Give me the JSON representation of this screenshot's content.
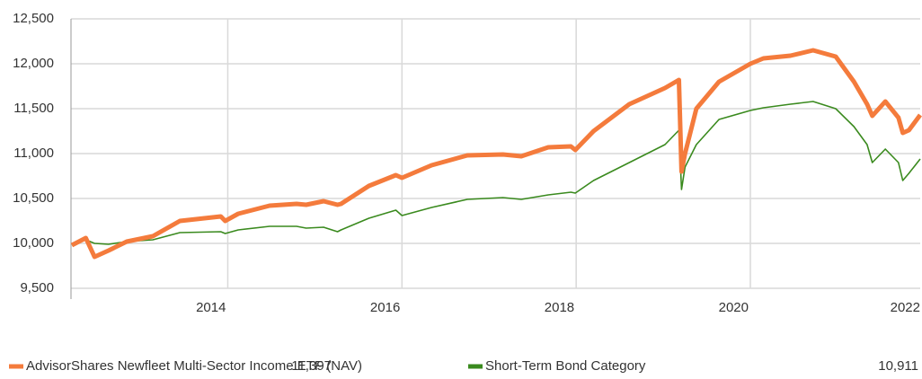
{
  "chart_data": {
    "type": "line",
    "x": [
      2012.21,
      2012.37,
      2012.47,
      2012.63,
      2012.84,
      2013.14,
      2013.45,
      2013.92,
      2013.97,
      2014.12,
      2014.48,
      2014.79,
      2014.9,
      2015.1,
      2015.26,
      2015.3,
      2015.62,
      2015.93,
      2016.0,
      2016.34,
      2016.75,
      2017.16,
      2017.37,
      2017.68,
      2017.94,
      2017.99,
      2018.2,
      2018.61,
      2019.02,
      2019.18,
      2019.21,
      2019.25,
      2019.38,
      2019.64,
      2020.0,
      2020.15,
      2020.46,
      2020.72,
      2020.98,
      2021.19,
      2021.34,
      2021.4,
      2021.55,
      2021.7,
      2021.75,
      2021.82,
      2021.95
    ],
    "series": [
      {
        "name": "AdvisorShares Newfleet Multi-Sector Income ETF (NAV)",
        "color": "#f47b3c",
        "legend_value": {
          "value": 11397,
          "label": "11,397"
        },
        "values": [
          9980,
          10060,
          9850,
          9920,
          10020,
          10080,
          10250,
          10300,
          10250,
          10330,
          10420,
          10440,
          10430,
          10470,
          10430,
          10440,
          10640,
          10760,
          10730,
          10870,
          10980,
          10990,
          10970,
          11070,
          11080,
          11040,
          11250,
          11550,
          11730,
          11820,
          10800,
          11000,
          11500,
          11800,
          12000,
          12060,
          12090,
          12150,
          12080,
          11800,
          11550,
          11420,
          11580,
          11400,
          11230,
          11260,
          11430
        ]
      },
      {
        "name": "Short-Term Bond Category",
        "color": "#3a8a1e",
        "legend_value": {
          "value": 10911,
          "label": "10,911"
        },
        "values": [
          9980,
          10040,
          10000,
          9990,
          10020,
          10040,
          10120,
          10130,
          10110,
          10150,
          10190,
          10190,
          10170,
          10180,
          10130,
          10150,
          10280,
          10370,
          10310,
          10400,
          10490,
          10510,
          10490,
          10540,
          10570,
          10560,
          10700,
          10900,
          11100,
          11260,
          10600,
          10850,
          11100,
          11380,
          11480,
          11510,
          11550,
          11580,
          11500,
          11300,
          11100,
          10900,
          11050,
          10900,
          10700,
          10780,
          10940
        ]
      }
    ],
    "xlim": [
      2012.2,
      2021.95
    ],
    "xticks": [
      2014,
      2016,
      2018,
      2020,
      2022
    ],
    "ylim": [
      9500,
      12500
    ],
    "yticks": [
      {
        "value": 9500,
        "label": "9,500"
      },
      {
        "value": 10000,
        "label": "10,000"
      },
      {
        "value": 10500,
        "label": "10,500"
      },
      {
        "value": 11000,
        "label": "11,000"
      },
      {
        "value": 11500,
        "label": "11,500"
      },
      {
        "value": 12000,
        "label": "12,000"
      },
      {
        "value": 12500,
        "label": "12,500"
      }
    ],
    "grid": true
  }
}
